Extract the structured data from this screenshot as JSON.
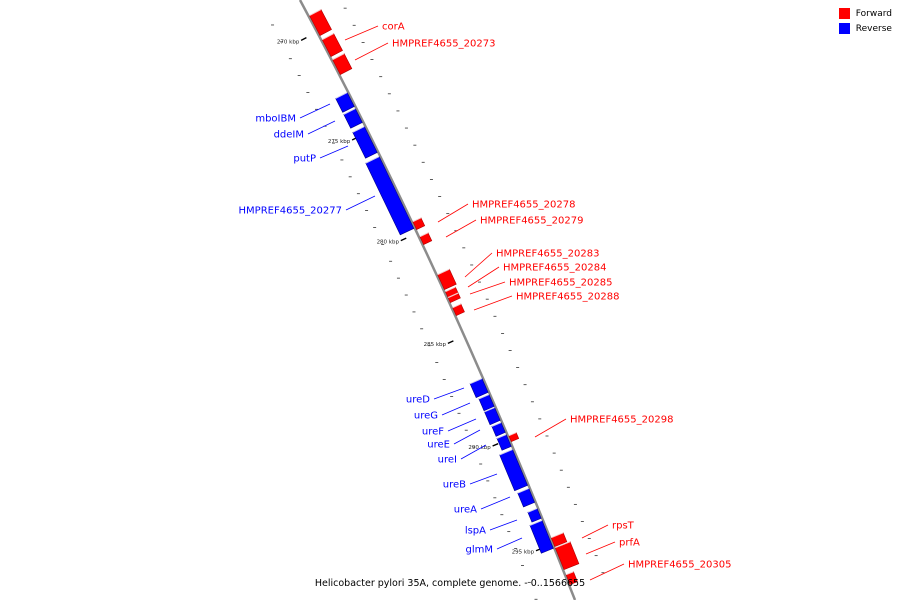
{
  "legend": {
    "forward_label": "Forward",
    "reverse_label": "Reverse",
    "forward_color": "#ff0000",
    "reverse_color": "#0000ff"
  },
  "caption": "Helicobacter pylori 35A, complete genome. - 0..1566655",
  "ticks": [
    "270 kbp",
    "275 kbp",
    "280 kbp",
    "285 kbp",
    "290 kbp",
    "295 kbp"
  ],
  "reverse_genes": [
    "mboIBM",
    "ddeIM",
    "putP",
    "HMPREF4655_20277",
    "ureD",
    "ureG",
    "ureF",
    "ureE",
    "ureI",
    "ureB",
    "ureA",
    "lspA",
    "glmM"
  ],
  "forward_genes": [
    "corA",
    "HMPREF4655_20273",
    "HMPREF4655_20278",
    "HMPREF4655_20279",
    "HMPREF4655_20283",
    "HMPREF4655_20284",
    "HMPREF4655_20285",
    "HMPREF4655_20288",
    "HMPREF4655_20298",
    "rpsT",
    "prfA",
    "HMPREF4655_20305"
  ]
}
